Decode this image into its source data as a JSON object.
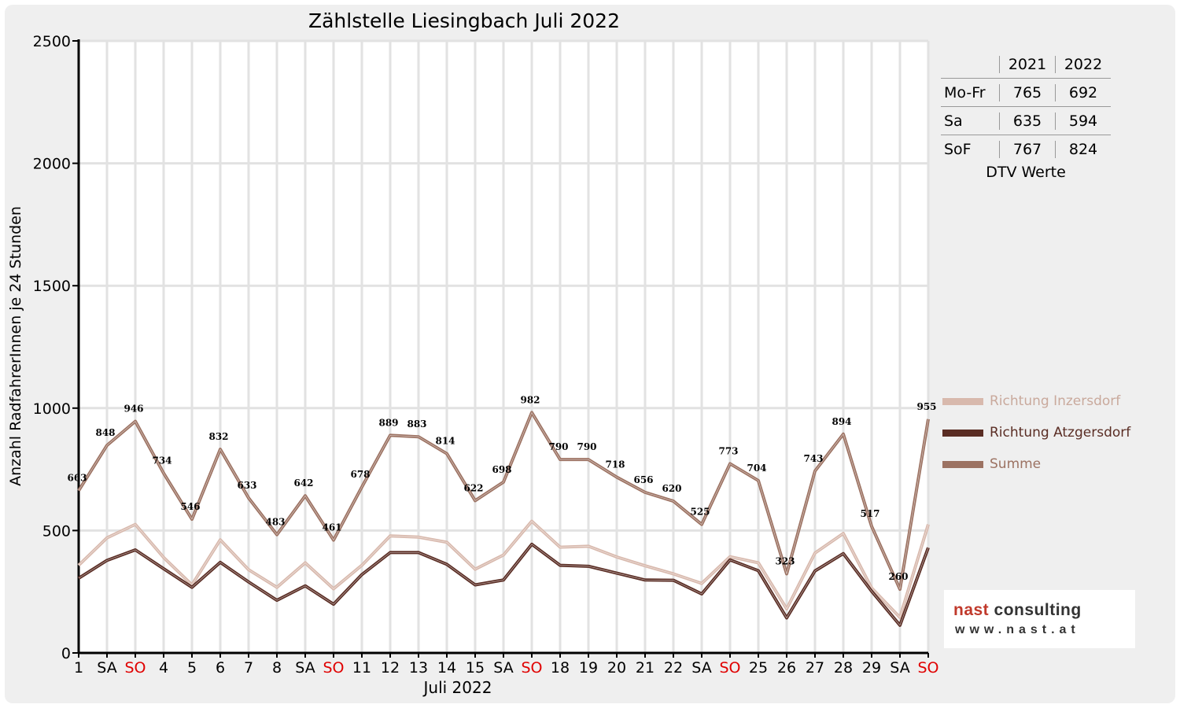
{
  "chart_data": {
    "type": "line",
    "title": "Zählstelle Liesingbach Juli 2022",
    "ylabel": "Anzahl RadfahrerInnen je 24 Stunden",
    "xlabel": "Juli 2022",
    "ylim": [
      0,
      2500
    ],
    "yticks": [
      0,
      500,
      1000,
      1500,
      2000,
      2500
    ],
    "categories": [
      "1",
      "SA",
      "SO",
      "4",
      "5",
      "6",
      "7",
      "8",
      "SA",
      "SO",
      "11",
      "12",
      "13",
      "14",
      "15",
      "SA",
      "SO",
      "18",
      "19",
      "20",
      "21",
      "22",
      "SA",
      "SO",
      "25",
      "26",
      "27",
      "28",
      "29",
      "SA",
      "SO"
    ],
    "weekend_red": [
      false,
      false,
      true,
      false,
      false,
      false,
      false,
      false,
      false,
      true,
      false,
      false,
      false,
      false,
      false,
      false,
      true,
      false,
      false,
      false,
      false,
      false,
      false,
      true,
      false,
      false,
      false,
      false,
      false,
      false,
      true
    ],
    "grid": true,
    "legend_position": "right",
    "series": [
      {
        "name": "Richtung Inzersdorf",
        "color": "#d8b9ad",
        "values": [
          358,
          470,
          525,
          390,
          278,
          462,
          340,
          268,
          368,
          262,
          358,
          478,
          473,
          452,
          342,
          400,
          538,
          432,
          436,
          392,
          356,
          323,
          284,
          393,
          368,
          180,
          408,
          488,
          265,
          145,
          525
        ]
      },
      {
        "name": "Richtung Atzgersdorf",
        "color": "#5a2d24",
        "values": [
          305,
          378,
          421,
          344,
          268,
          370,
          290,
          215,
          274,
          199,
          320,
          410,
          410,
          362,
          278,
          298,
          444,
          358,
          354,
          326,
          298,
          297,
          241,
          380,
          336,
          143,
          335,
          406,
          252,
          113,
          430
        ]
      },
      {
        "name": "Summe",
        "color": "#9c7262",
        "values": [
          663,
          848,
          946,
          734,
          546,
          832,
          633,
          483,
          642,
          461,
          678,
          889,
          883,
          814,
          622,
          698,
          982,
          790,
          790,
          718,
          656,
          620,
          525,
          773,
          704,
          323,
          743,
          894,
          517,
          260,
          955
        ]
      }
    ]
  },
  "dtv": {
    "headers": [
      "",
      "2021",
      "2022"
    ],
    "rows": [
      [
        "Mo-Fr",
        "765",
        "692"
      ],
      [
        "Sa",
        "635",
        "594"
      ],
      [
        "SoF",
        "767",
        "824"
      ]
    ],
    "caption": "DTV Werte"
  },
  "logo": {
    "name_part1": "nast",
    "name_part2": " consulting",
    "url": "www.nast.at"
  }
}
